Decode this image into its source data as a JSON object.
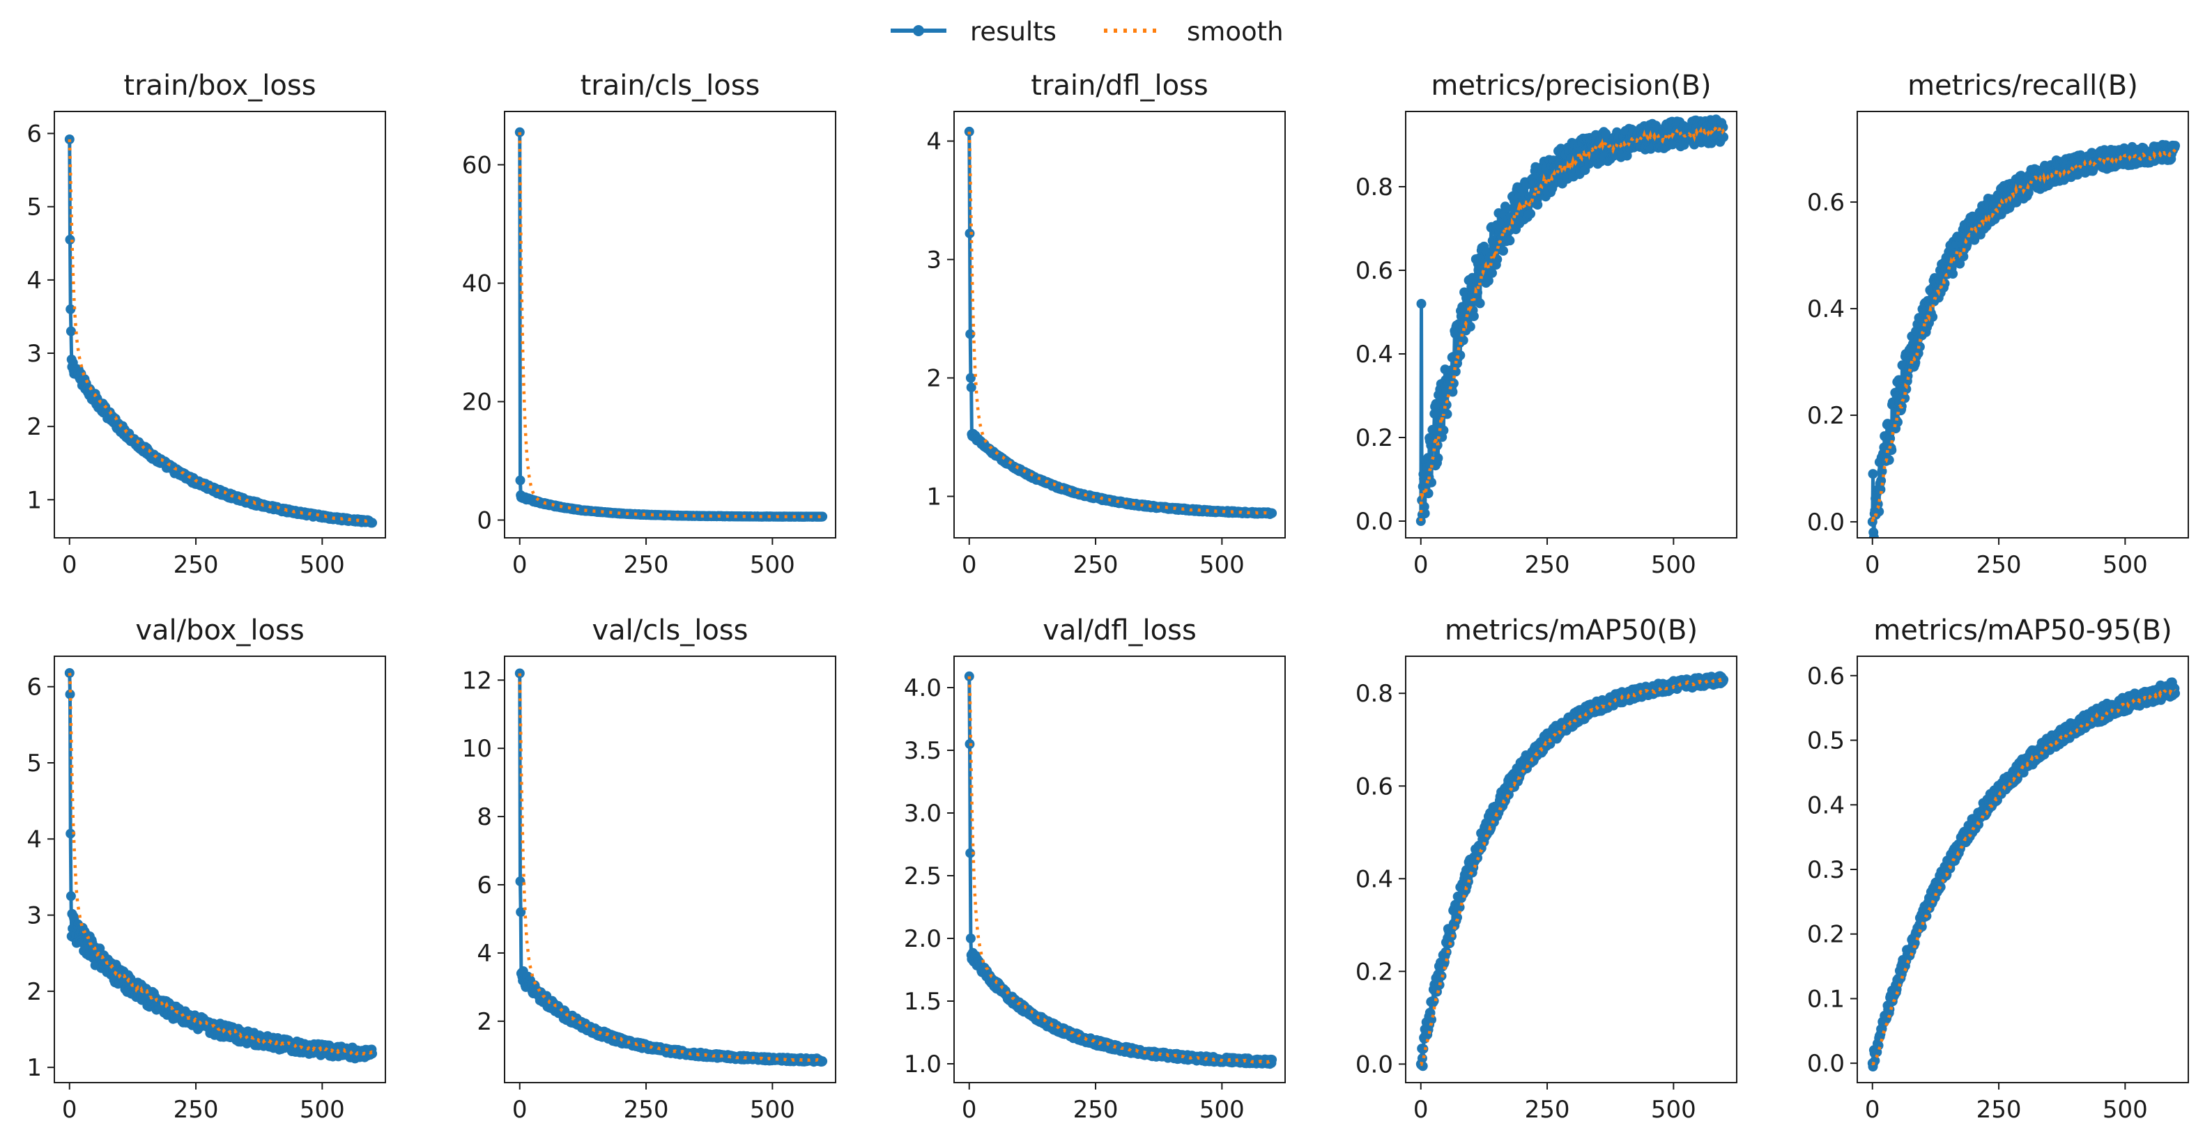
{
  "legend": {
    "items": [
      {
        "label": "results",
        "style": "line-marker"
      },
      {
        "label": "smooth",
        "style": "dotted"
      }
    ]
  },
  "colors": {
    "results": "#1f77b4",
    "smooth": "#ff7f0e",
    "axes": "#1a1a1a",
    "background": "#ffffff"
  },
  "chart_data": [
    {
      "type": "line",
      "title": "train/box_loss",
      "xlim": [
        -30,
        625
      ],
      "ylim": [
        0.48,
        6.3
      ],
      "xticks": [
        0,
        250,
        500
      ],
      "yticks": [
        1,
        2,
        3,
        4,
        5,
        6
      ],
      "series_shape": {
        "kind": "decay",
        "start": 5.92,
        "knee": 2.9,
        "end": 0.58,
        "tau": 200,
        "noise": 0.03,
        "spikes": [
          [
            1,
            4.55
          ],
          [
            2,
            3.6
          ],
          [
            3,
            3.3
          ]
        ]
      }
    },
    {
      "type": "line",
      "title": "train/cls_loss",
      "xlim": [
        -30,
        625
      ],
      "ylim": [
        -3,
        69
      ],
      "xticks": [
        0,
        250,
        500
      ],
      "yticks": [
        0,
        20,
        40,
        60
      ],
      "series_shape": {
        "kind": "decay",
        "start": 65.5,
        "knee": 4.0,
        "end": 0.55,
        "tau": 110,
        "noise": 0.05,
        "spikes": [
          [
            1,
            6.7
          ],
          [
            2,
            4.2
          ]
        ]
      }
    },
    {
      "type": "line",
      "title": "train/dfl_loss",
      "xlim": [
        -30,
        625
      ],
      "ylim": [
        0.65,
        4.25
      ],
      "xticks": [
        0,
        250,
        500
      ],
      "yticks": [
        1,
        2,
        3,
        4
      ],
      "series_shape": {
        "kind": "decay",
        "start": 4.08,
        "knee": 1.55,
        "end": 0.84,
        "tau": 160,
        "noise": 0.01,
        "spikes": [
          [
            1,
            3.22
          ],
          [
            2,
            2.37
          ],
          [
            3,
            2.0
          ],
          [
            4,
            1.92
          ]
        ]
      }
    },
    {
      "type": "line",
      "title": "metrics/precision(B)",
      "xlim": [
        -30,
        625
      ],
      "ylim": [
        -0.04,
        0.98
      ],
      "xticks": [
        0,
        250,
        500
      ],
      "yticks": [
        0.0,
        0.2,
        0.4,
        0.6,
        0.8
      ],
      "series_shape": {
        "kind": "rise",
        "start": 0.0,
        "end": 0.94,
        "tau": 120,
        "noise": 0.09,
        "noiseFade": true,
        "spikes": [
          [
            1,
            0.52
          ],
          [
            2,
            0.05
          ]
        ]
      }
    },
    {
      "type": "line",
      "title": "metrics/recall(B)",
      "xlim": [
        -30,
        625
      ],
      "ylim": [
        -0.03,
        0.77
      ],
      "xticks": [
        0,
        250,
        500
      ],
      "yticks": [
        0.0,
        0.2,
        0.4,
        0.6
      ],
      "series_shape": {
        "kind": "rise",
        "start": 0.0,
        "end": 0.7,
        "tau": 130,
        "noise": 0.05,
        "noiseFade": true,
        "spikes": [
          [
            1,
            0.09
          ]
        ]
      }
    },
    {
      "type": "line",
      "title": "val/box_loss",
      "xlim": [
        -30,
        625
      ],
      "ylim": [
        0.8,
        6.4
      ],
      "xticks": [
        0,
        250,
        500
      ],
      "yticks": [
        1,
        2,
        3,
        4,
        5,
        6
      ],
      "series_shape": {
        "kind": "decay",
        "start": 6.18,
        "knee": 2.9,
        "end": 1.08,
        "tau": 200,
        "noise": 0.06,
        "spikes": [
          [
            1,
            5.9
          ],
          [
            2,
            4.07
          ],
          [
            3,
            3.25
          ]
        ]
      }
    },
    {
      "type": "line",
      "title": "val/cls_loss",
      "xlim": [
        -30,
        625
      ],
      "ylim": [
        0.2,
        12.7
      ],
      "xticks": [
        0,
        250,
        500
      ],
      "yticks": [
        2,
        4,
        6,
        8,
        10,
        12
      ],
      "series_shape": {
        "kind": "decay",
        "start": 12.2,
        "knee": 3.4,
        "end": 0.82,
        "tau": 140,
        "noise": 0.06,
        "spikes": [
          [
            1,
            6.1
          ],
          [
            2,
            5.2
          ],
          [
            3,
            3.4
          ]
        ]
      }
    },
    {
      "type": "line",
      "title": "val/dfl_loss",
      "xlim": [
        -30,
        625
      ],
      "ylim": [
        0.85,
        4.25
      ],
      "xticks": [
        0,
        250,
        500
      ],
      "yticks": [
        1.0,
        1.5,
        2.0,
        2.5,
        3.0,
        3.5,
        4.0
      ],
      "series_shape": {
        "kind": "decay",
        "start": 4.09,
        "knee": 1.9,
        "end": 1.0,
        "tau": 150,
        "noise": 0.02,
        "spikes": [
          [
            1,
            3.55
          ],
          [
            2,
            2.68
          ],
          [
            3,
            2.0
          ]
        ]
      }
    },
    {
      "type": "line",
      "title": "metrics/mAP50(B)",
      "xlim": [
        -30,
        625
      ],
      "ylim": [
        -0.04,
        0.88
      ],
      "xticks": [
        0,
        250,
        500
      ],
      "yticks": [
        0.0,
        0.2,
        0.4,
        0.6,
        0.8
      ],
      "series_shape": {
        "kind": "rise",
        "start": 0.0,
        "end": 0.84,
        "tau": 140,
        "noise": 0.03,
        "noiseFade": true,
        "spikes": []
      }
    },
    {
      "type": "line",
      "title": "metrics/mAP50-95(B)",
      "xlim": [
        -30,
        625
      ],
      "ylim": [
        -0.03,
        0.63
      ],
      "xticks": [
        0,
        250,
        500
      ],
      "yticks": [
        0.0,
        0.1,
        0.2,
        0.3,
        0.4,
        0.5,
        0.6
      ],
      "series_shape": {
        "kind": "rise",
        "start": 0.0,
        "end": 0.62,
        "tau": 220,
        "noise": 0.012,
        "noiseFade": false,
        "spikes": []
      }
    }
  ]
}
